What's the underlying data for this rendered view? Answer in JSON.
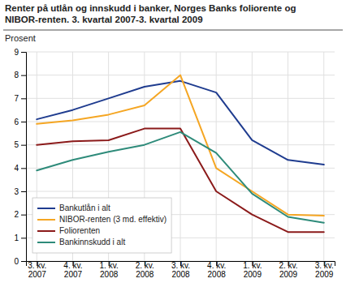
{
  "chart_data": {
    "type": "line",
    "title": "Renter på utlån og innskudd i banker, Norges Banks foliorente og\nNIBOR-renten. 3. kvartal 2007-3. kvartal 2009",
    "y_label": "Prosent",
    "categories": [
      "3. kv.\n2007",
      "4. kv.\n2007",
      "1. kv.\n2008",
      "2. kv.\n2008",
      "3. kv.\n2008",
      "4. kv.\n2008",
      "1. kv.\n2009",
      "2. kv.\n2009",
      "3. kv.\n2009"
    ],
    "series": [
      {
        "name": "Bankutlån i alt",
        "color": "#1f3c8f",
        "values": [
          6.1,
          6.5,
          7.0,
          7.5,
          7.75,
          7.25,
          5.2,
          4.35,
          4.15
        ]
      },
      {
        "name": "NIBOR-renten (3 md. effektiv)",
        "color": "#f5a623",
        "values": [
          5.9,
          6.05,
          6.3,
          6.7,
          8.0,
          4.0,
          3.0,
          2.0,
          1.95
        ]
      },
      {
        "name": "Foliorenten",
        "color": "#8b1a1a",
        "values": [
          5.0,
          5.15,
          5.2,
          5.7,
          5.7,
          3.0,
          2.0,
          1.25,
          1.25
        ]
      },
      {
        "name": "Bankinnskudd i alt",
        "color": "#2e8b7a",
        "values": [
          3.9,
          4.35,
          4.7,
          5.0,
          5.55,
          4.65,
          2.9,
          1.9,
          1.65
        ]
      }
    ],
    "ylim": [
      0,
      9
    ],
    "yticks": [
      0,
      1,
      2,
      3,
      4,
      5,
      6,
      7,
      8,
      9
    ],
    "grid": true,
    "legend": "lower left"
  }
}
